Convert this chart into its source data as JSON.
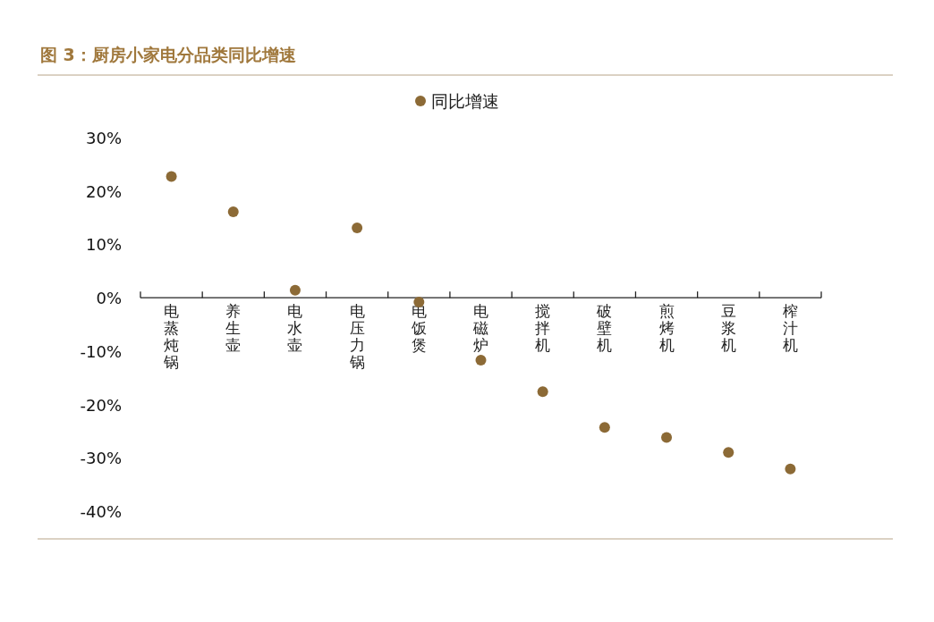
{
  "chart_data": {
    "type": "scatter",
    "title": "图 3：厨房小家电分品类同比增速",
    "categories": [
      "电蒸炖锅",
      "养生壶",
      "电水壶",
      "电压力锅",
      "电饭煲",
      "电磁炉",
      "搅拌机",
      "破壁机",
      "煎烤机",
      "豆浆机",
      "榨汁机"
    ],
    "series": [
      {
        "name": "同比增速",
        "color": "#8c6a36",
        "values": [
          22.7,
          16.1,
          1.4,
          13.1,
          -0.8,
          -11.7,
          -17.6,
          -24.3,
          -26.2,
          -29.0,
          -32.1
        ]
      }
    ],
    "ylim": [
      -40,
      30
    ],
    "yticks": [
      {
        "value": 30,
        "label": "30%"
      },
      {
        "value": 20,
        "label": "20%"
      },
      {
        "value": 10,
        "label": "10%"
      },
      {
        "value": 0,
        "label": "0%"
      },
      {
        "value": -10,
        "label": "-10%"
      },
      {
        "value": -20,
        "label": "-20%"
      },
      {
        "value": -30,
        "label": "-30%"
      },
      {
        "value": -40,
        "label": "-40%"
      }
    ],
    "legend": "top",
    "marker": "circle"
  }
}
